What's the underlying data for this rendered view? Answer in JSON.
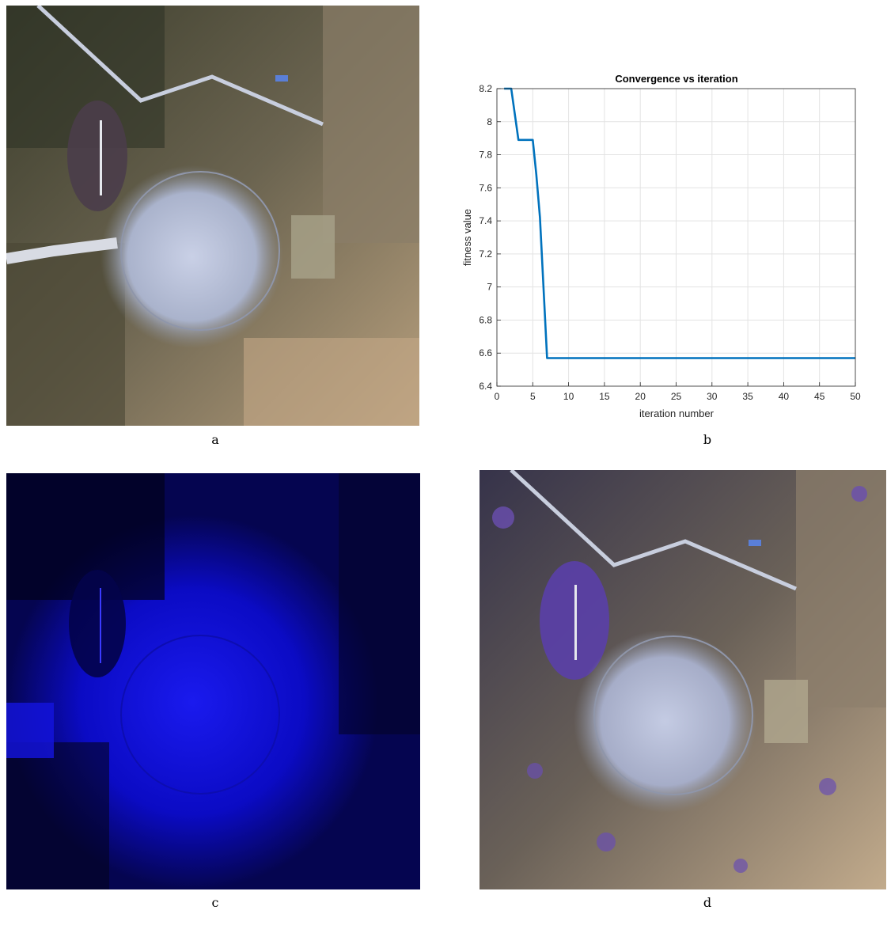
{
  "captions": {
    "a": "a",
    "b": "b",
    "c": "c",
    "d": "d"
  },
  "colors": {
    "line": "#0072bd",
    "grid": "#e3e3e3",
    "axis": "#262626",
    "tint_c": "#0a0adc",
    "tint_d_purple": "#6a4fb0"
  },
  "chart_data": {
    "type": "line",
    "title": "Convergence vs iteration",
    "xlabel": "iteration number",
    "ylabel": "fitness value",
    "xlim": [
      0,
      50
    ],
    "ylim": [
      6.4,
      8.2
    ],
    "xticks": [
      "0",
      "5",
      "10",
      "15",
      "20",
      "25",
      "30",
      "35",
      "40",
      "45",
      "50"
    ],
    "yticks": [
      "6.4",
      "6.6",
      "6.8",
      "7",
      "7.2",
      "7.4",
      "7.6",
      "7.8",
      "8",
      "8.2"
    ],
    "grid": true,
    "series": [
      {
        "x": [
          1,
          2,
          3,
          4,
          5,
          5.5,
          6,
          7,
          8,
          50
        ],
        "y": [
          8.2,
          8.2,
          7.89,
          7.89,
          7.89,
          7.68,
          7.42,
          6.57,
          6.57,
          6.57
        ]
      }
    ]
  }
}
